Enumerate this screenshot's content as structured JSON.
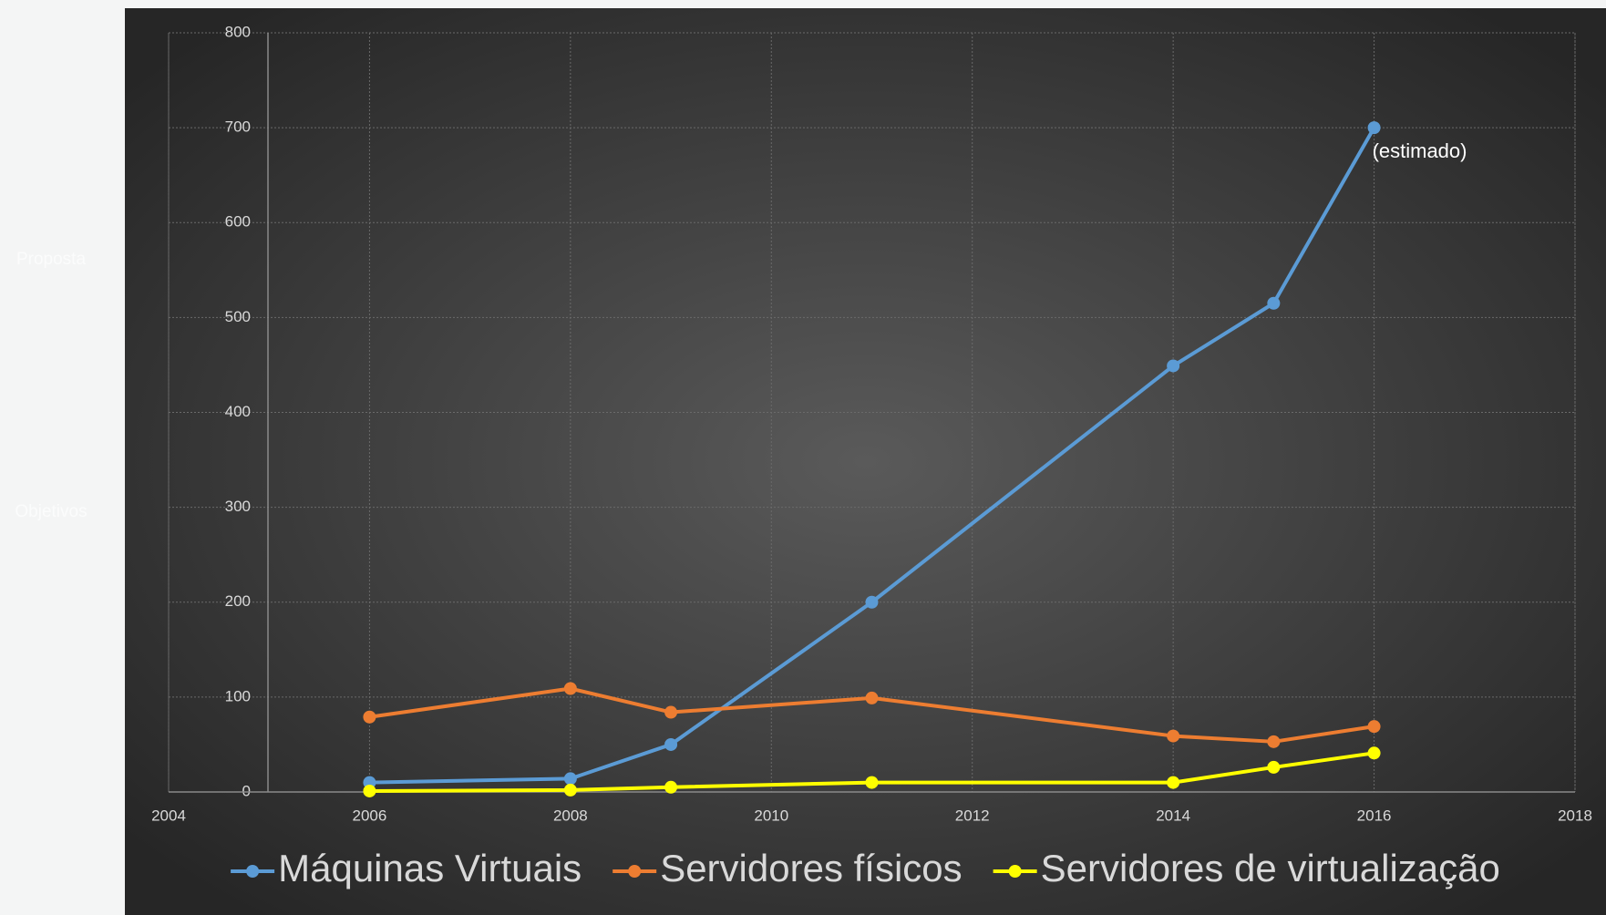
{
  "sidebar": [
    "Proposta",
    "Objetivos"
  ],
  "chart_data": {
    "type": "line",
    "x": [
      2006,
      2008,
      2009,
      2011,
      2014,
      2015,
      2016
    ],
    "series": [
      {
        "name": "Máquinas Virtuais",
        "color": "#5b9bd5",
        "values": [
          10,
          14,
          50,
          200,
          449,
          515,
          700
        ]
      },
      {
        "name": "Servidores físicos",
        "color": "#ed7d31",
        "values": [
          79,
          109,
          84,
          99,
          59,
          53,
          69
        ]
      },
      {
        "name": "Servidores de virtualização",
        "color": "#ffff00",
        "values": [
          1,
          2,
          5,
          10,
          10,
          26,
          41
        ]
      }
    ],
    "annotations": [
      "(estimado)"
    ],
    "xlim": [
      2004,
      2018
    ],
    "xticks": [
      2004,
      2006,
      2008,
      2010,
      2012,
      2014,
      2016,
      2018
    ],
    "ylim": [
      0,
      800
    ],
    "yticks": [
      0,
      100,
      200,
      300,
      400,
      500,
      600,
      700,
      800
    ],
    "grid": true,
    "legend": "bottom"
  }
}
